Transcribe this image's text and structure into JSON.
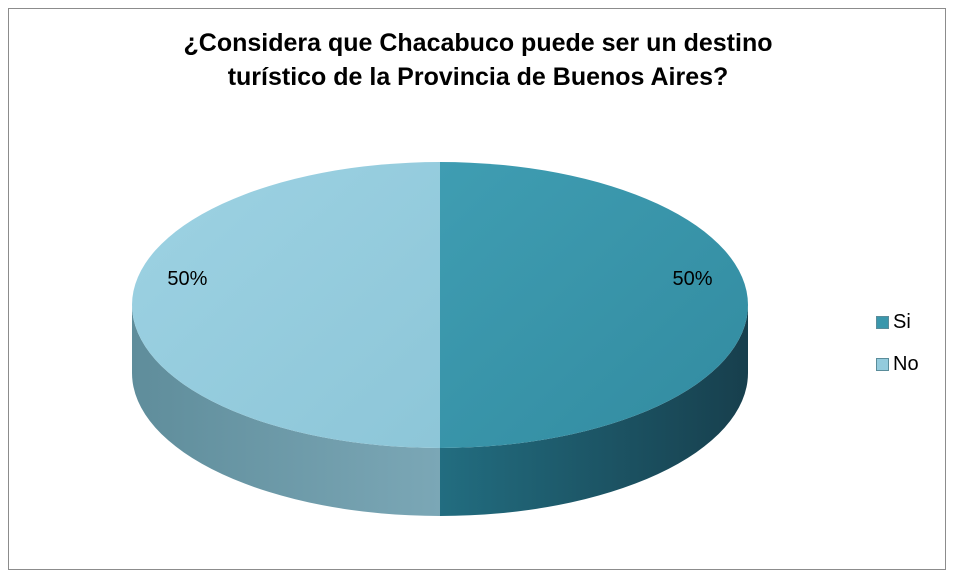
{
  "chart_data": {
    "type": "pie",
    "style": "3d",
    "title": "¿Considera que Chacabuco puede ser un destino turístico de la Provincia de Buenos Aires?",
    "title_lines": [
      "¿Considera que Chacabuco puede ser un destino",
      "turístico de la Provincia de Buenos Aires?"
    ],
    "categories": [
      "Si",
      "No"
    ],
    "values": [
      50,
      50
    ],
    "data_labels": [
      "50%",
      "50%"
    ],
    "colors": {
      "Si": "#3a97ac",
      "No": "#93cbdd"
    },
    "legend_position": "right"
  }
}
